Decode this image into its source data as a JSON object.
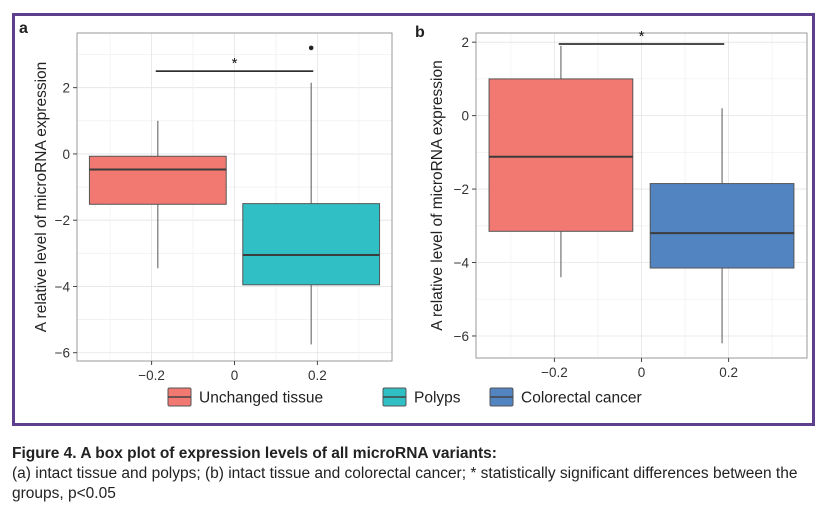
{
  "colors": {
    "frame": "#5d3f8e",
    "unchanged": "#f27872",
    "polyps": "#2fbfc4",
    "colorectal": "#5384c2"
  },
  "chart_data": [
    {
      "panel_label": "a",
      "type": "box",
      "ylabel": "A relative level of microRNA expression",
      "xlabel": "",
      "xlim": [
        -0.38,
        0.38
      ],
      "ylim": [
        -6.25,
        3.65
      ],
      "xticks": [
        "−0.2",
        "0",
        "0.2"
      ],
      "xtick_values": [
        -0.2,
        0,
        0.2
      ],
      "yticks": [
        "−6",
        "−4",
        "−2",
        "0",
        "2"
      ],
      "ytick_values": [
        -6,
        -4,
        -2,
        0,
        2
      ],
      "grid": true,
      "boxes": [
        {
          "group": "Unchanged tissue",
          "color_key": "unchanged",
          "x_from": -0.35,
          "x_to": -0.02,
          "whisker_low": -3.45,
          "q1": -1.52,
          "median": -0.47,
          "q3": -0.07,
          "whisker_high": 1.0,
          "outliers": []
        },
        {
          "group": "Polyps",
          "color_key": "polyps",
          "x_from": 0.02,
          "x_to": 0.35,
          "whisker_low": -5.75,
          "q1": -3.95,
          "median": -3.05,
          "q3": -1.5,
          "whisker_high": 2.15,
          "outliers": [
            3.2
          ]
        }
      ],
      "significance": {
        "label": "*",
        "x_from": -0.19,
        "x_to": 0.19,
        "y": 2.5
      }
    },
    {
      "panel_label": "b",
      "type": "box",
      "ylabel": "A relative level of microRNA expression",
      "xlabel": "",
      "xlim": [
        -0.38,
        0.38
      ],
      "ylim": [
        -6.6,
        2.25
      ],
      "xticks": [
        "−0.2",
        "0",
        "0.2"
      ],
      "xtick_values": [
        -0.2,
        0,
        0.2
      ],
      "yticks": [
        "−6",
        "−4",
        "−2",
        "0",
        "2"
      ],
      "ytick_values": [
        -6,
        -4,
        -2,
        0,
        2
      ],
      "grid": true,
      "boxes": [
        {
          "group": "Unchanged tissue",
          "color_key": "unchanged",
          "x_from": -0.35,
          "x_to": -0.02,
          "whisker_low": -4.4,
          "q1": -3.15,
          "median": -1.12,
          "q3": 1.0,
          "whisker_high": 1.9,
          "outliers": []
        },
        {
          "group": "Colorectal cancer",
          "color_key": "colorectal",
          "x_from": 0.02,
          "x_to": 0.35,
          "whisker_low": -6.2,
          "q1": -4.15,
          "median": -3.2,
          "q3": -1.85,
          "whisker_high": 0.2,
          "outliers": []
        }
      ],
      "significance": {
        "label": "*",
        "x_from": -0.19,
        "x_to": 0.19,
        "y": 1.95
      }
    }
  ],
  "legend": [
    {
      "label": "Unchanged tissue",
      "color_key": "unchanged"
    },
    {
      "label": "Polyps",
      "color_key": "polyps"
    },
    {
      "label": "Colorectal cancer",
      "color_key": "colorectal"
    }
  ],
  "caption": {
    "title": "Figure 4. A box plot of expression levels of all microRNA variants:",
    "body": "(a) intact tissue and polyps; (b) intact tissue and colorectal cancer; * statistically significant differences between the groups, p<0.05"
  }
}
